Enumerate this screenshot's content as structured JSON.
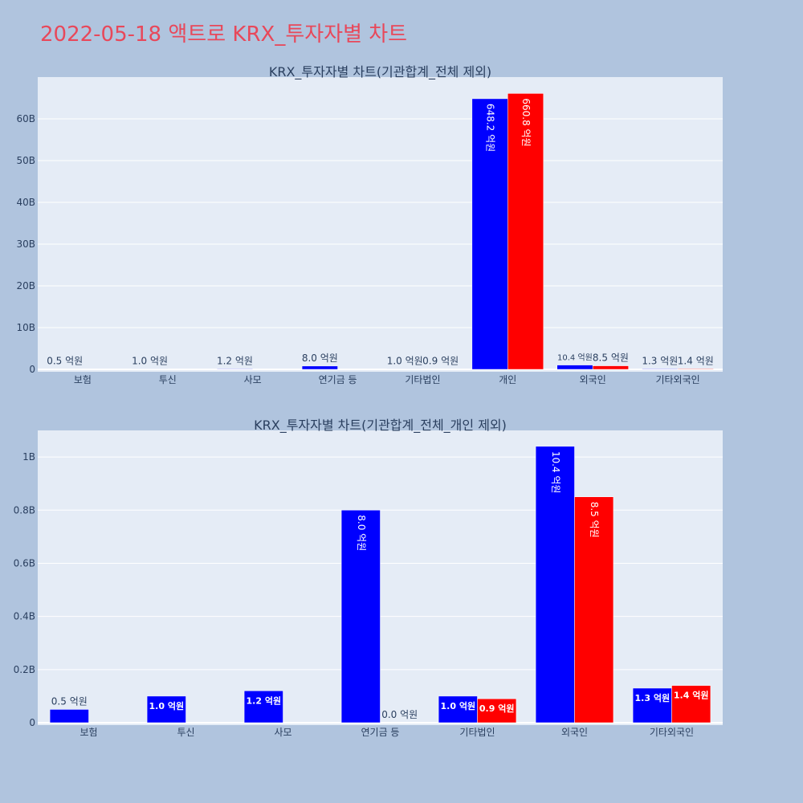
{
  "page_title": "2022-05-18 액트로 KRX_투자자별 차트",
  "colors": {
    "buy": "#0000ff",
    "sell": "#ff0000",
    "title": "#e8485a",
    "plot_bg": "#e5ecf6",
    "page_bg": "#b0c4de"
  },
  "chart_data": [
    {
      "type": "bar",
      "title": "KRX_투자자별 차트(기관합계_전체 제외)",
      "categories": [
        "보험",
        "투신",
        "사모",
        "연기금 등",
        "기타법인",
        "개인",
        "외국인",
        "기타외국인"
      ],
      "ylim": [
        0,
        70000000000
      ],
      "yticks": [
        {
          "value": 0,
          "label": "0"
        },
        {
          "value": 10000000000,
          "label": "10B"
        },
        {
          "value": 20000000000,
          "label": "20B"
        },
        {
          "value": 30000000000,
          "label": "30B"
        },
        {
          "value": 40000000000,
          "label": "40B"
        },
        {
          "value": 50000000000,
          "label": "50B"
        },
        {
          "value": 60000000000,
          "label": "60B"
        }
      ],
      "series": [
        {
          "color": "#0000ff",
          "values": [
            50000000,
            100000000,
            120000000,
            800000000,
            100000000,
            64820000000,
            1040000000,
            130000000
          ],
          "labels": [
            "0.5 억원",
            "1.0 억원",
            "1.2 억원",
            "8.0 억원",
            "1.0 억원",
            "648.2 억원",
            "10.4 억원",
            "1.3 억원"
          ]
        },
        {
          "color": "#ff0000",
          "values": [
            null,
            null,
            null,
            0,
            90000000,
            66080000000,
            850000000,
            140000000
          ],
          "labels": [
            "",
            "",
            "",
            "",
            "0.9 억원",
            "660.8 억원",
            "8.5 억원",
            "1.4 억원"
          ]
        }
      ],
      "grid": true
    },
    {
      "type": "bar",
      "title": "KRX_투자자별 차트(기관합계_전체_개인 제외)",
      "categories": [
        "보험",
        "투신",
        "사모",
        "연기금 등",
        "기타법인",
        "외국인",
        "기타외국인"
      ],
      "ylim": [
        0,
        1100000000
      ],
      "yticks": [
        {
          "value": 0,
          "label": "0"
        },
        {
          "value": 200000000,
          "label": "0.2B"
        },
        {
          "value": 400000000,
          "label": "0.4B"
        },
        {
          "value": 600000000,
          "label": "0.6B"
        },
        {
          "value": 800000000,
          "label": "0.8B"
        },
        {
          "value": 1000000000,
          "label": "1B"
        }
      ],
      "series": [
        {
          "color": "#0000ff",
          "values": [
            50000000,
            100000000,
            120000000,
            800000000,
            100000000,
            1040000000,
            130000000
          ],
          "labels": [
            "0.5 억원",
            "1.0 억원",
            "1.2 억원",
            "8.0 억원",
            "1.0 억원",
            "10.4 억원",
            "1.3 억원"
          ]
        },
        {
          "color": "#ff0000",
          "values": [
            null,
            null,
            null,
            0,
            90000000,
            850000000,
            140000000
          ],
          "labels": [
            "",
            "",
            "",
            "0.0 억원",
            "0.9 억원",
            "8.5 억원",
            "1.4 억원"
          ]
        }
      ],
      "grid": true
    }
  ]
}
